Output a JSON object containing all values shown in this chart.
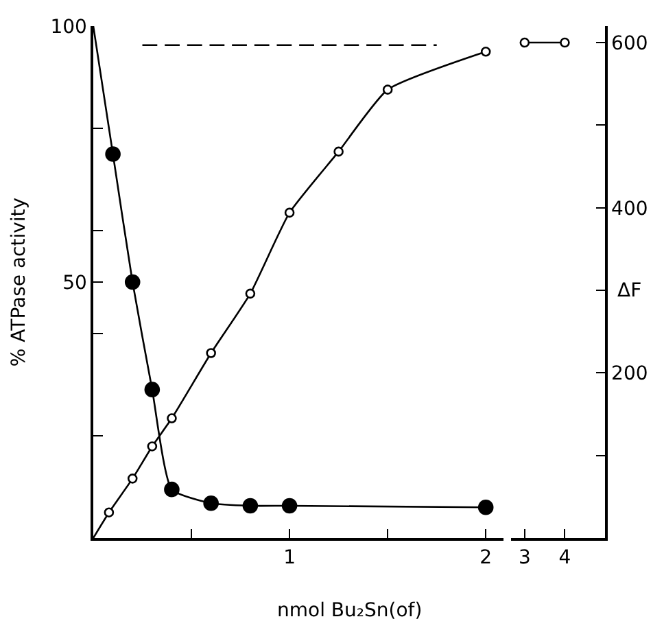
{
  "chart_data": [
    {
      "type": "scatter",
      "xlabel": "nmol Bu₂Sn(of)",
      "ylabel": "% ATPase activity",
      "xlim": [
        0,
        2.09
      ],
      "xticks": [
        {
          "value": 0.5,
          "label": null
        },
        1,
        {
          "value": 1.5,
          "label": null
        },
        2
      ],
      "ylim": [
        0,
        100
      ],
      "yticks": [
        {
          "value": 20,
          "label": null
        },
        {
          "value": 40,
          "label": null
        },
        50,
        {
          "value": 60,
          "label": null
        },
        {
          "value": 80,
          "label": null
        },
        100
      ],
      "y2lim": [
        0,
        620
      ],
      "marker": "circle",
      "series": [
        {
          "type": "line",
          "marker": "none",
          "line_style": "solid",
          "color": "#000000",
          "x": [
            0,
            0.1,
            0.2,
            0.3,
            0.4,
            0.6,
            0.8,
            1.0,
            2.0
          ],
          "values": [
            100,
            75,
            50,
            29,
            9.5,
            6.8,
            6.3,
            6.3,
            6
          ]
        },
        {
          "type": "line",
          "marker": "none",
          "line_style": "solid",
          "axis": "y2",
          "color": "#000000",
          "x": [
            0,
            0.08,
            0.2,
            0.3,
            0.4,
            0.6,
            0.8,
            1.0,
            1.25,
            1.5,
            2
          ],
          "values": [
            0,
            31,
            72,
            111,
            145,
            224,
            296,
            394,
            468,
            543,
            589
          ]
        },
        {
          "type": "line",
          "marker": "none",
          "line_style": "dashed",
          "axis": "y2",
          "color": "#000000",
          "x": [
            0.25,
            1.75
          ],
          "values": [
            597,
            597
          ]
        },
        {
          "color": "#000000",
          "x": [
            0.1,
            0.2,
            0.3,
            0.4,
            0.6,
            0.8,
            1.0,
            2.0
          ],
          "values": [
            75,
            50,
            29,
            9.5,
            6.8,
            6.3,
            6.3,
            6
          ]
        },
        {
          "axis": "y2",
          "color": "#ffffff",
          "x": [
            0.08,
            0.2,
            0.3,
            0.4,
            0.6,
            0.8,
            1.0,
            1.25,
            1.5,
            2
          ],
          "values": [
            31,
            72,
            111,
            145,
            224,
            296,
            394,
            468,
            543,
            589
          ]
        }
      ]
    },
    {
      "type": "scatter",
      "y2label": "ΔF",
      "xlim": [
        2.67,
        5.0
      ],
      "xticks": [
        3,
        4
      ],
      "y2lim": [
        0,
        620
      ],
      "y2ticks": [
        {
          "value": 100,
          "label": null
        },
        200,
        {
          "value": 300,
          "label": null
        },
        400,
        {
          "value": 500,
          "label": null
        },
        600
      ],
      "marker": "circle",
      "series": [
        {
          "type": "line",
          "marker": "none",
          "line_style": "solid",
          "axis": "y2",
          "color": "#000000",
          "x": [
            3,
            4
          ],
          "values": [
            600,
            600
          ]
        },
        {
          "axis": "y2",
          "color": "#ffffff",
          "x": [
            3,
            4
          ],
          "values": [
            600,
            600
          ]
        }
      ]
    }
  ]
}
